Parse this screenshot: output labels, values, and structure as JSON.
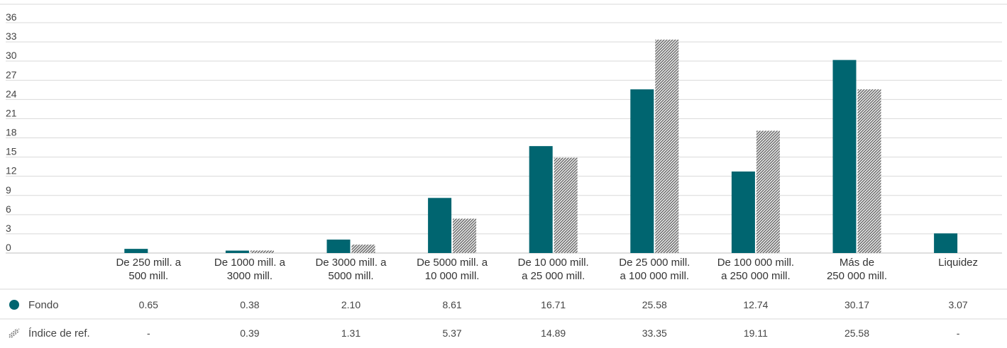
{
  "colors": {
    "fondo": "#006570",
    "indice": "#777777",
    "grid": "#d9d9d9"
  },
  "chart_data": {
    "type": "bar",
    "ylim": [
      0,
      36
    ],
    "yticks": [
      0,
      3,
      6,
      9,
      12,
      15,
      18,
      21,
      24,
      27,
      30,
      33,
      36
    ],
    "categories": [
      [
        "De 250 mill. a",
        "500 mill."
      ],
      [
        "De 1000 mill. a",
        "3000 mill."
      ],
      [
        "De 3000 mill. a",
        "5000 mill."
      ],
      [
        "De 5000 mill. a",
        "10 000 mill."
      ],
      [
        "De 10 000 mill.",
        "a 25 000 mill."
      ],
      [
        "De 25 000 mill.",
        "a 100 000 mill."
      ],
      [
        "De 100 000 mill.",
        "a 250 000 mill."
      ],
      [
        "Más de",
        "250 000 mill."
      ],
      [
        "Liquidez"
      ]
    ],
    "series": [
      {
        "name": "Fondo",
        "values": [
          0.65,
          0.38,
          2.1,
          8.61,
          16.71,
          25.58,
          12.74,
          30.17,
          3.07
        ],
        "labels": [
          "0.65",
          "0.38",
          "2.10",
          "8.61",
          "16.71",
          "25.58",
          "12.74",
          "30.17",
          "3.07"
        ]
      },
      {
        "name": "Índice de ref.",
        "values": [
          null,
          0.39,
          1.31,
          5.37,
          14.89,
          33.35,
          19.11,
          25.58,
          null
        ],
        "labels": [
          "-",
          "0.39",
          "1.31",
          "5.37",
          "14.89",
          "33.35",
          "19.11",
          "25.58",
          "-"
        ]
      }
    ]
  }
}
